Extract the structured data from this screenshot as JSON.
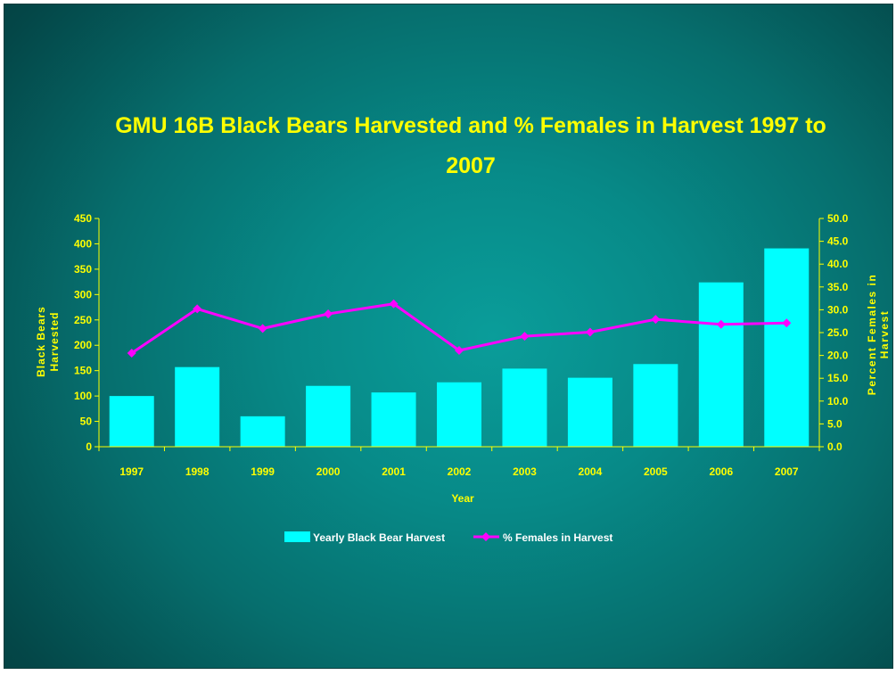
{
  "chart_data": {
    "type": "bar",
    "title_lines": [
      "GMU 16B Black Bears Harvested and % Females in Harvest 1997 to",
      "2007"
    ],
    "xlabel": "Year",
    "ylabel_lines": [
      "Black Bears",
      "Harvested"
    ],
    "y2label_lines": [
      "Percent Females in",
      "Harvest"
    ],
    "categories": [
      "1997",
      "1998",
      "1999",
      "2000",
      "2001",
      "2002",
      "2003",
      "2004",
      "2005",
      "2006",
      "2007"
    ],
    "ylim": [
      0,
      450
    ],
    "yticks": [
      "0",
      "50",
      "100",
      "150",
      "200",
      "250",
      "300",
      "350",
      "400",
      "450"
    ],
    "y2lim": [
      0,
      50
    ],
    "y2ticks": [
      "0.0",
      "5.0",
      "10.0",
      "15.0",
      "20.0",
      "25.0",
      "30.0",
      "35.0",
      "40.0",
      "45.0",
      "50.0"
    ],
    "grid": false,
    "legend_position": "bottom",
    "series": [
      {
        "name": "Yearly Black Bear Harvest",
        "type": "bar",
        "axis": "left",
        "color": "#00ffff",
        "values": [
          100,
          157,
          60,
          120,
          107,
          127,
          154,
          136,
          163,
          324,
          391
        ]
      },
      {
        "name": "% Females in Harvest",
        "type": "line",
        "axis": "right",
        "color": "#ff00ff",
        "values": [
          20.5,
          30.2,
          25.9,
          29.1,
          31.3,
          21.1,
          24.2,
          25.1,
          27.9,
          26.8,
          27.1
        ]
      }
    ]
  }
}
